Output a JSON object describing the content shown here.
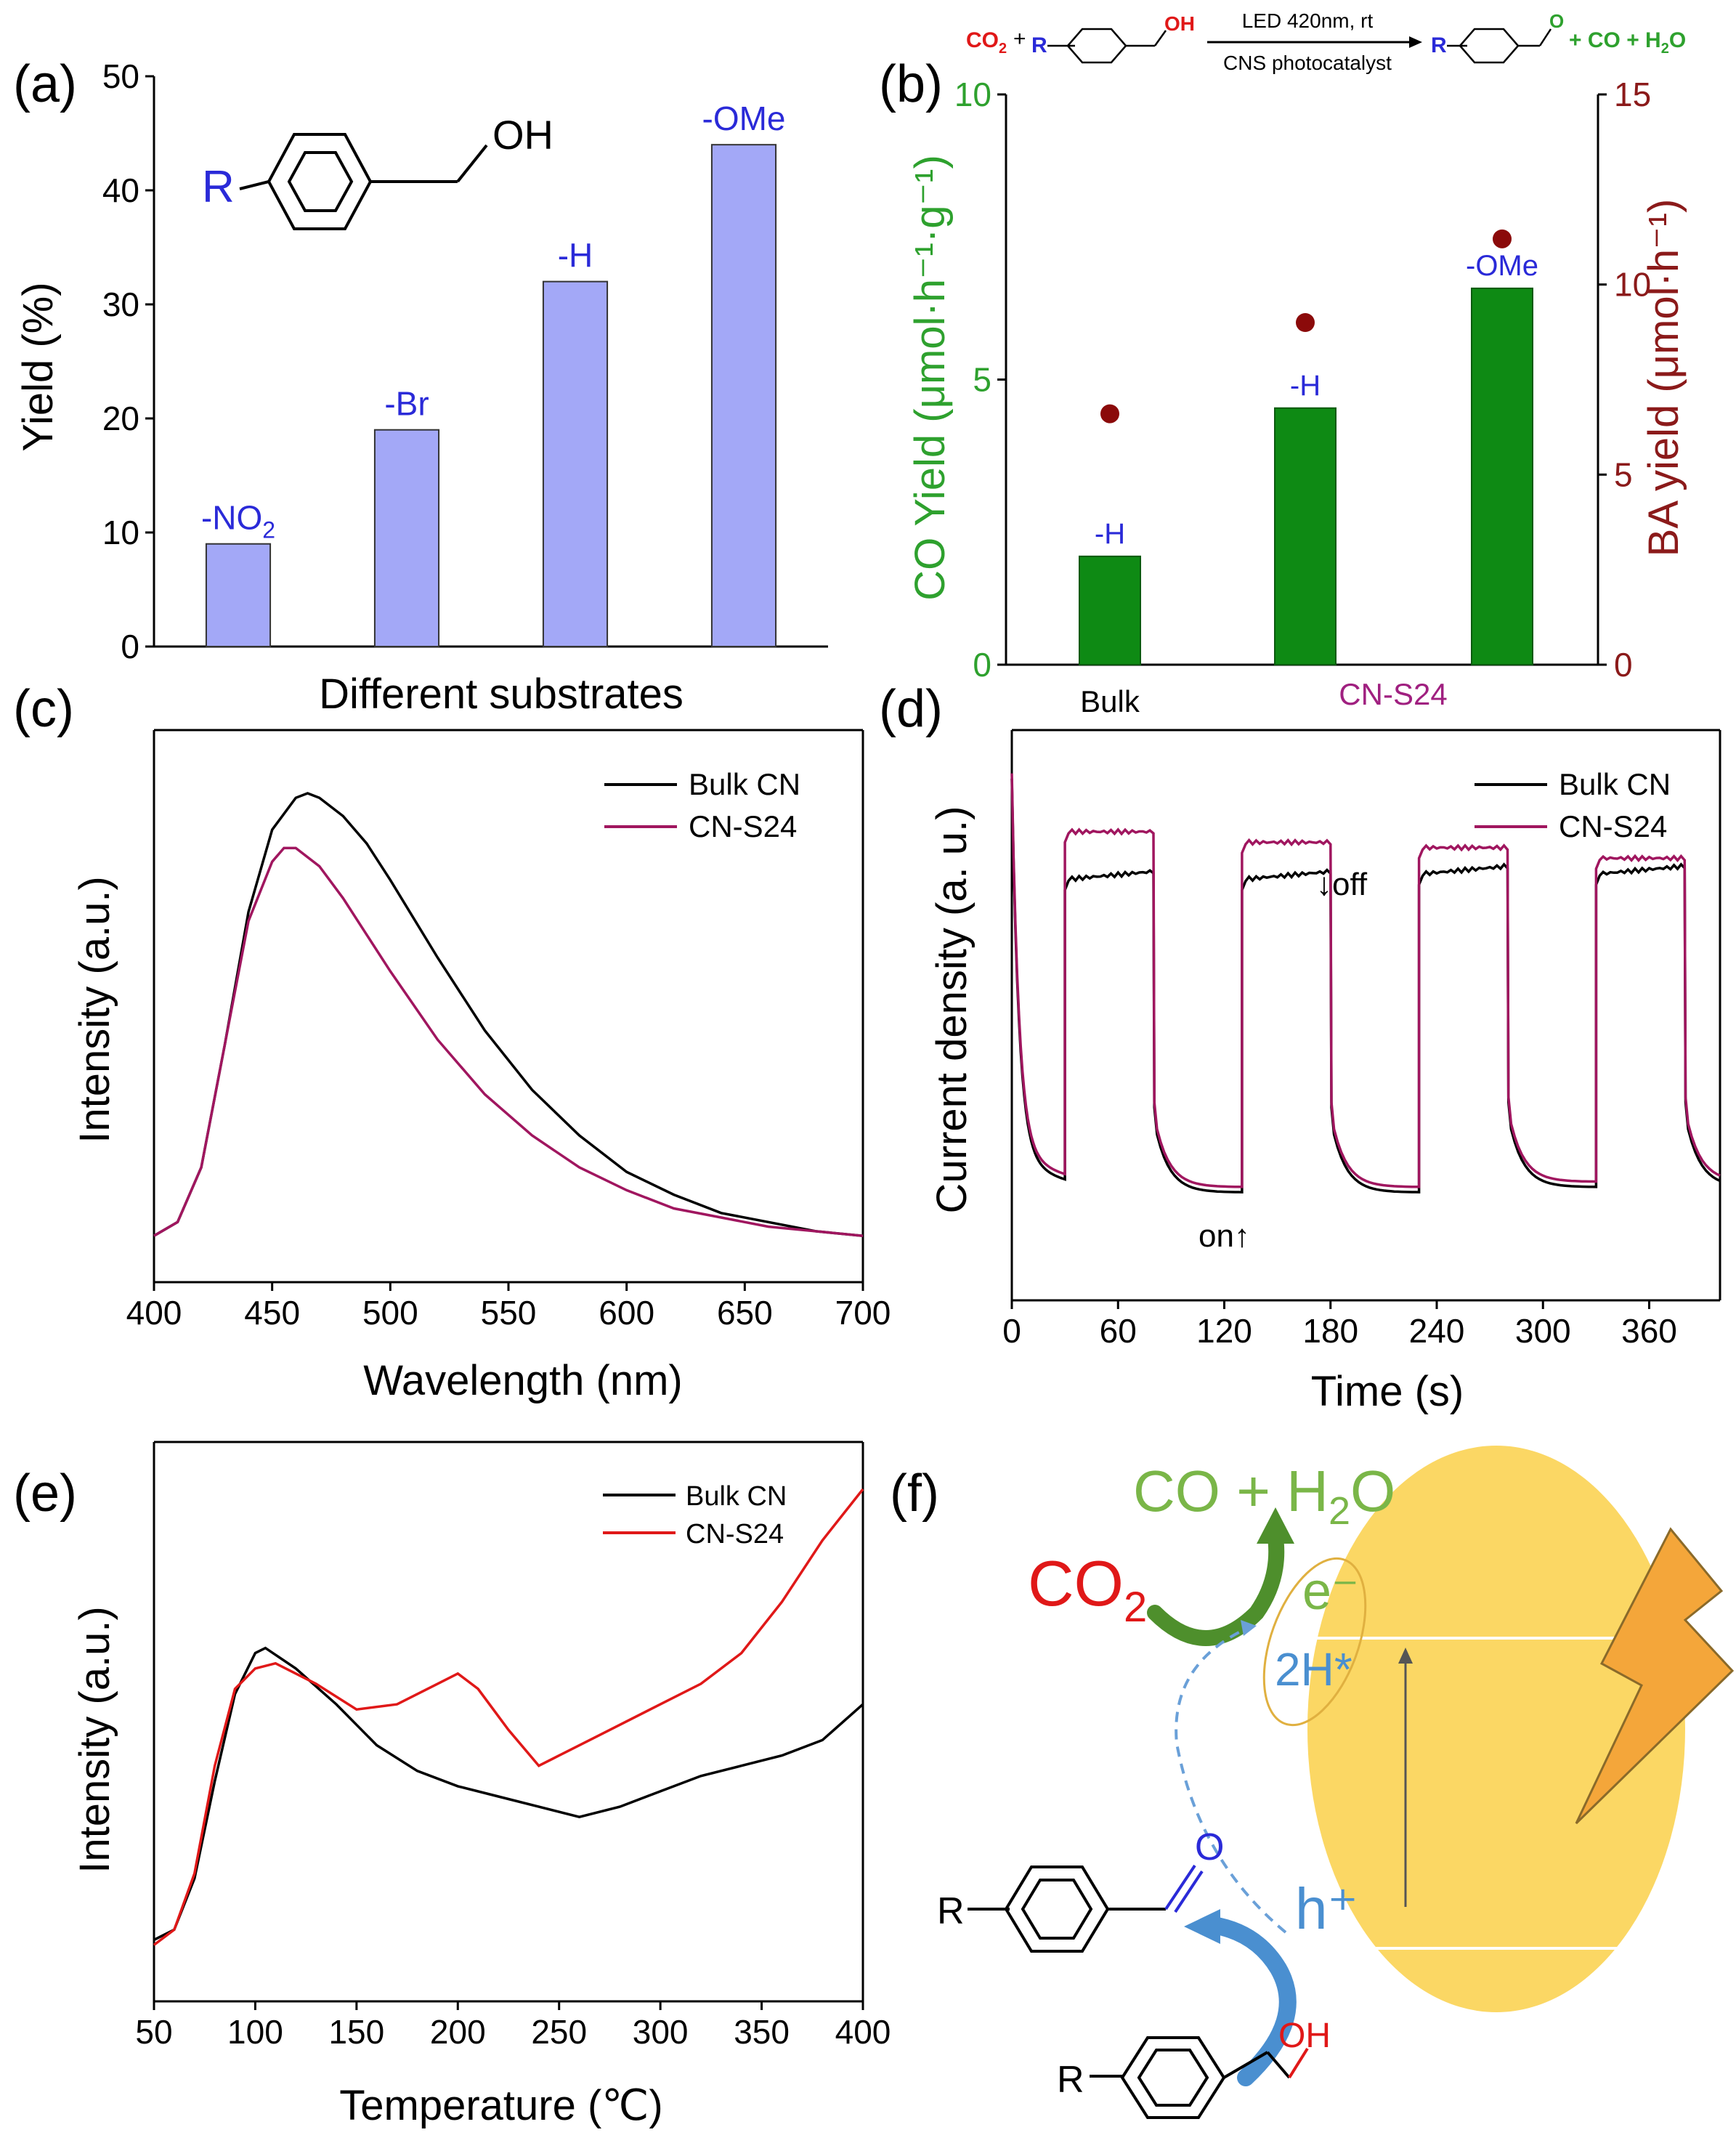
{
  "colors": {
    "bar_a": "#a3a8f7",
    "bar_b": "#0e8a14",
    "ba_dot": "#8b0a0a",
    "bulk": "#000000",
    "cns24_cd": "#a0165f",
    "cns24_tpd": "#e01818",
    "green_text": "#2ea12e",
    "darkred_text": "#8b1a1a",
    "blue_text": "#2a2ad8",
    "purple_text": "#a02080",
    "ellipse": "#fbd764",
    "f_green": "#7ab648",
    "f_red": "#e01818",
    "f_blue": "#4a8fd0"
  },
  "chart_data": [
    {
      "id": "a",
      "panel_label": "(a)",
      "type": "bar",
      "categories": [
        "-NO2",
        "-Br",
        "-H",
        "-OMe"
      ],
      "category_labels": [
        {
          "main": "-NO",
          "sub": "2"
        },
        {
          "main": "-Br",
          "sub": ""
        },
        {
          "main": "-H",
          "sub": ""
        },
        {
          "main": "-OMe",
          "sub": ""
        }
      ],
      "values": [
        9,
        19,
        32,
        44
      ],
      "ylim": [
        0,
        50
      ],
      "yticks": [
        "0",
        "10",
        "20",
        "30",
        "40",
        "50"
      ],
      "ylabel": "Yield (%)",
      "xlabel": "Different substrates",
      "structure_labels": {
        "substituent": "R",
        "group": "OH"
      }
    },
    {
      "id": "b",
      "panel_label": "(b)",
      "type": "bar",
      "categories": [
        "Bulk -H",
        "CN-S24 -H",
        "CN-S24 -OMe"
      ],
      "bar_labels": [
        "-H",
        "-H",
        "-OMe"
      ],
      "series": [
        {
          "name": "CO Yield",
          "axis": "left",
          "values": [
            1.9,
            4.5,
            6.6
          ]
        },
        {
          "name": "BA yield",
          "axis": "right",
          "values": [
            6.6,
            9.0,
            11.2
          ]
        }
      ],
      "ylim_left": [
        0,
        10
      ],
      "yticks_left": [
        "0",
        "5",
        "10"
      ],
      "ylim_right": [
        0,
        15
      ],
      "yticks_right": [
        "0",
        "5",
        "10",
        "15"
      ],
      "ylabel_left": "CO Yield (μmol·h⁻¹·g⁻¹)",
      "ylabel_right": "BA yield (μmol·h⁻¹)",
      "group_labels": [
        "Bulk",
        "CN-S24"
      ],
      "scheme": {
        "reactant_co2": "CO",
        "co2_sub": "2",
        "plus": "+",
        "r": "R",
        "oh": "OH",
        "arrow_top": "LED 420nm, rt",
        "arrow_bottom": "CNS photocatalyst",
        "aldehyde_o": "O",
        "products": "+ CO + H",
        "h2o_sub": "2",
        "h2o_end": "O"
      }
    },
    {
      "id": "c",
      "panel_label": "(c)",
      "type": "line",
      "xlabel": "Wavelength (nm)",
      "ylabel": "Intensity (a.u.)",
      "xlim": [
        400,
        700
      ],
      "xticks": [
        "400",
        "450",
        "500",
        "550",
        "600",
        "650",
        "700"
      ],
      "series": [
        {
          "name": "Bulk CN",
          "x": [
            400,
            410,
            420,
            430,
            440,
            450,
            460,
            465,
            470,
            480,
            490,
            500,
            520,
            540,
            560,
            580,
            600,
            620,
            640,
            660,
            680,
            700
          ],
          "y": [
            0.03,
            0.06,
            0.18,
            0.45,
            0.74,
            0.92,
            0.99,
            1.0,
            0.99,
            0.95,
            0.89,
            0.81,
            0.64,
            0.48,
            0.35,
            0.25,
            0.17,
            0.12,
            0.08,
            0.06,
            0.04,
            0.03
          ]
        },
        {
          "name": "CN-S24",
          "x": [
            400,
            410,
            420,
            430,
            440,
            450,
            455,
            460,
            470,
            480,
            490,
            500,
            520,
            540,
            560,
            580,
            600,
            620,
            640,
            660,
            680,
            700
          ],
          "y": [
            0.03,
            0.06,
            0.18,
            0.45,
            0.72,
            0.85,
            0.88,
            0.88,
            0.84,
            0.77,
            0.69,
            0.61,
            0.46,
            0.34,
            0.25,
            0.18,
            0.13,
            0.09,
            0.07,
            0.05,
            0.04,
            0.03
          ]
        }
      ]
    },
    {
      "id": "d",
      "panel_label": "(d)",
      "type": "line",
      "xlabel": "Time (s)",
      "ylabel": "Current density (a. u.)",
      "xlim": [
        0,
        400
      ],
      "xticks": [
        "0",
        "60",
        "120",
        "180",
        "240",
        "300",
        "360"
      ],
      "cycles": [
        {
          "on": 30,
          "off": 80
        },
        {
          "on": 130,
          "off": 180
        },
        {
          "on": 230,
          "off": 280
        },
        {
          "on": 330,
          "off": 380
        }
      ],
      "series": [
        {
          "name": "Bulk CN",
          "plateau": [
            0.78,
            0.78,
            0.79,
            0.79
          ],
          "dark_floor": [
            0.19,
            0.19,
            0.2,
            0.2
          ]
        },
        {
          "name": "CN-S24",
          "plateau": [
            0.87,
            0.85,
            0.84,
            0.82
          ],
          "dark_floor": [
            0.2,
            0.2,
            0.21,
            0.21
          ]
        }
      ],
      "annotations": {
        "on": "on↑",
        "off": "↓off"
      }
    },
    {
      "id": "e",
      "panel_label": "(e)",
      "type": "line",
      "xlabel": "Temperature (℃)",
      "ylabel": "Intensity (a.u.)",
      "xlim": [
        50,
        400
      ],
      "xticks": [
        "50",
        "100",
        "150",
        "200",
        "250",
        "300",
        "350",
        "400"
      ],
      "series": [
        {
          "name": "Bulk CN",
          "x": [
            50,
            60,
            70,
            80,
            90,
            100,
            105,
            120,
            140,
            160,
            180,
            200,
            220,
            240,
            260,
            280,
            300,
            320,
            340,
            360,
            380,
            400
          ],
          "y": [
            0.12,
            0.14,
            0.24,
            0.43,
            0.6,
            0.68,
            0.69,
            0.65,
            0.58,
            0.5,
            0.45,
            0.42,
            0.4,
            0.38,
            0.36,
            0.38,
            0.41,
            0.44,
            0.46,
            0.48,
            0.51,
            0.58
          ]
        },
        {
          "name": "CN-S24",
          "x": [
            50,
            60,
            70,
            80,
            90,
            100,
            110,
            130,
            150,
            170,
            190,
            200,
            210,
            225,
            240,
            250,
            270,
            300,
            320,
            340,
            360,
            380,
            400
          ],
          "y": [
            0.11,
            0.14,
            0.25,
            0.46,
            0.61,
            0.65,
            0.66,
            0.62,
            0.57,
            0.58,
            0.62,
            0.64,
            0.61,
            0.53,
            0.46,
            0.48,
            0.52,
            0.58,
            0.62,
            0.68,
            0.78,
            0.9,
            1.0
          ]
        }
      ]
    }
  ],
  "panel_f": {
    "label": "(f)",
    "product": "CO + H",
    "product_sub": "2",
    "product_end": "O",
    "co2": "CO",
    "co2_sub": "2",
    "electron": "e⁻",
    "hydrogen": "2H*",
    "hole": "h⁺",
    "r_top": "R",
    "r_bottom": "R",
    "oh": "OH",
    "aldehyde_o": "O"
  }
}
